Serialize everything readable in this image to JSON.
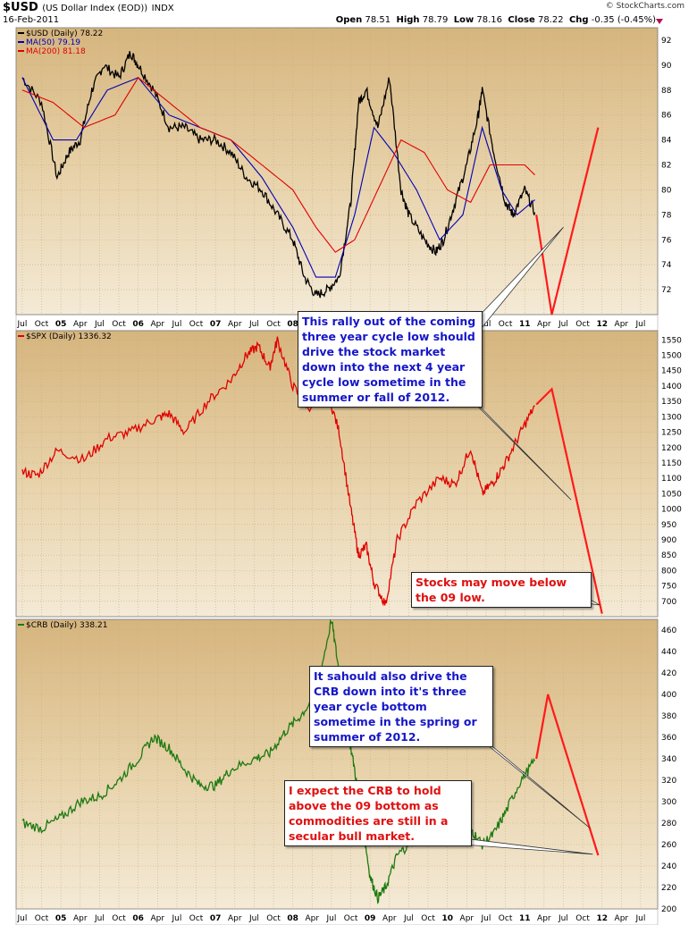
{
  "header": {
    "symbol": "$USD",
    "description": "(US Dollar Index (EOD))",
    "exchange": "INDX",
    "date": "16-Feb-2011",
    "brand": "© StockCharts.com",
    "open_label": "Open",
    "open": "78.51",
    "high_label": "High",
    "high": "78.79",
    "low_label": "Low",
    "low": "78.16",
    "close_label": "Close",
    "close": "78.22",
    "chg_label": "Chg",
    "chg": "-0.35 (-0.45%)"
  },
  "colors": {
    "background": "#dcc08e",
    "usd": "#000000",
    "ma50": "#0000b4",
    "ma200": "#e00000",
    "spx": "#e00000",
    "crb": "#1c7a10",
    "projection": "#ff1a1a"
  },
  "time_axis": {
    "ticks": [
      "Jul",
      "Oct",
      "05",
      "Apr",
      "Jul",
      "Oct",
      "06",
      "Apr",
      "Jul",
      "Oct",
      "07",
      "Apr",
      "Jul",
      "Oct",
      "08",
      "Apr",
      "Jul",
      "Oct",
      "09",
      "Apr",
      "Jul",
      "Oct",
      "10",
      "Apr",
      "Jul",
      "Oct",
      "11",
      "Apr",
      "Jul",
      "Oct",
      "12",
      "Apr",
      "Jul"
    ],
    "year_ticks": [
      "05",
      "06",
      "07",
      "08",
      "09",
      "10",
      "11",
      "12"
    ]
  },
  "chart_data": [
    {
      "type": "line",
      "legend": [
        "$USD (Daily) 78.22",
        "MA(50) 79.19",
        "MA(200) 81.18"
      ],
      "ylim": [
        70,
        93
      ],
      "y_ticks": [
        92,
        90,
        88,
        86,
        84,
        82,
        80,
        78,
        76,
        74,
        72
      ],
      "series": [
        {
          "name": "$USD (Daily)",
          "last": 78.22,
          "x": [
            2004.5,
            2004.75,
            2004.95,
            2005.1,
            2005.25,
            2005.4,
            2005.55,
            2005.75,
            2005.9,
            2006.0,
            2006.2,
            2006.4,
            2006.6,
            2006.8,
            2007.0,
            2007.2,
            2007.4,
            2007.6,
            2007.8,
            2008.0,
            2008.15,
            2008.3,
            2008.45,
            2008.6,
            2008.75,
            2008.85,
            2008.95,
            2009.1,
            2009.25,
            2009.4,
            2009.5,
            2009.7,
            2009.85,
            2009.95,
            2010.1,
            2010.25,
            2010.4,
            2010.45,
            2010.6,
            2010.75,
            2010.85,
            2011.0,
            2011.13
          ],
          "y": [
            89,
            87,
            81,
            83,
            84,
            88,
            90,
            89,
            91,
            90,
            88,
            85,
            85,
            84,
            84,
            83,
            81,
            80,
            78,
            76,
            73,
            71.5,
            72,
            73,
            79,
            87,
            88,
            85,
            89,
            80,
            78,
            76,
            75,
            76,
            79,
            82,
            86,
            88,
            83,
            79,
            78,
            80,
            78.2
          ]
        },
        {
          "name": "MA(50)",
          "last": 79.19,
          "x": [
            2004.5,
            2004.9,
            2005.2,
            2005.6,
            2006.0,
            2006.4,
            2006.8,
            2007.2,
            2007.6,
            2008.0,
            2008.3,
            2008.55,
            2008.8,
            2009.05,
            2009.3,
            2009.6,
            2009.9,
            2010.2,
            2010.45,
            2010.7,
            2010.9,
            2011.13
          ],
          "y": [
            89,
            84,
            84,
            88,
            89,
            86,
            85,
            84,
            81,
            77,
            73,
            73,
            78,
            85,
            83,
            80,
            76,
            78,
            85,
            80,
            78,
            79.2
          ]
        },
        {
          "name": "MA(200)",
          "last": 81.18,
          "x": [
            2004.5,
            2004.9,
            2005.3,
            2005.7,
            2006.0,
            2006.4,
            2006.8,
            2007.2,
            2007.6,
            2008.0,
            2008.3,
            2008.55,
            2008.8,
            2009.1,
            2009.4,
            2009.7,
            2010.0,
            2010.3,
            2010.55,
            2010.8,
            2011.0,
            2011.13
          ],
          "y": [
            88,
            87,
            85,
            86,
            89,
            87,
            85,
            84,
            82,
            80,
            77,
            75,
            76,
            80,
            84,
            83,
            80,
            79,
            82,
            82,
            82,
            81.2
          ]
        }
      ],
      "projection": {
        "x": [
          2011.15,
          2011.35,
          2011.95
        ],
        "y": [
          78,
          70,
          85
        ]
      },
      "pointer": {
        "x": 2011.5,
        "y": 77
      }
    },
    {
      "type": "line",
      "legend": [
        "$SPX (Daily) 1336.32"
      ],
      "ylim": [
        650,
        1580
      ],
      "y_ticks": [
        1550,
        1500,
        1450,
        1400,
        1350,
        1300,
        1250,
        1200,
        1150,
        1100,
        1050,
        1000,
        950,
        900,
        850,
        800,
        750,
        700
      ],
      "series": [
        {
          "name": "$SPX (Daily)",
          "last": 1336.32,
          "x": [
            2004.5,
            2004.7,
            2004.95,
            2005.3,
            2005.6,
            2005.9,
            2006.2,
            2006.4,
            2006.6,
            2006.9,
            2007.2,
            2007.4,
            2007.55,
            2007.7,
            2007.8,
            2008.0,
            2008.2,
            2008.45,
            2008.6,
            2008.75,
            2008.85,
            2008.95,
            2009.05,
            2009.2,
            2009.35,
            2009.6,
            2009.9,
            2010.1,
            2010.3,
            2010.45,
            2010.6,
            2010.75,
            2010.95,
            2011.13
          ],
          "y": [
            1120,
            1110,
            1190,
            1160,
            1230,
            1250,
            1290,
            1310,
            1250,
            1350,
            1420,
            1500,
            1530,
            1460,
            1550,
            1400,
            1330,
            1380,
            1250,
            1000,
            850,
            880,
            760,
            690,
            900,
            1020,
            1100,
            1080,
            1200,
            1050,
            1090,
            1150,
            1250,
            1336
          ]
        }
      ],
      "projection": {
        "x": [
          2011.15,
          2011.35,
          2012.0
        ],
        "y": [
          1340,
          1390,
          660
        ]
      },
      "pointer": {
        "x": 2011.6,
        "y": 1030
      }
    },
    {
      "type": "line",
      "legend": [
        "$CRB (Daily) 338.21"
      ],
      "ylim": [
        200,
        470
      ],
      "y_ticks": [
        460,
        440,
        420,
        400,
        380,
        360,
        340,
        320,
        300,
        280,
        260,
        240,
        220,
        200
      ],
      "series": [
        {
          "name": "$CRB (Daily)",
          "last": 338.21,
          "x": [
            2004.5,
            2004.75,
            2005.0,
            2005.25,
            2005.5,
            2005.75,
            2006.0,
            2006.2,
            2006.4,
            2006.6,
            2006.8,
            2007.0,
            2007.2,
            2007.5,
            2007.7,
            2007.9,
            2008.1,
            2008.3,
            2008.5,
            2008.6,
            2008.7,
            2008.8,
            2008.9,
            2009.0,
            2009.1,
            2009.2,
            2009.35,
            2009.5,
            2009.7,
            2009.9,
            2010.1,
            2010.3,
            2010.45,
            2010.6,
            2010.75,
            2010.95,
            2011.13
          ],
          "y": [
            280,
            275,
            285,
            300,
            305,
            320,
            340,
            360,
            350,
            330,
            315,
            315,
            330,
            340,
            345,
            365,
            380,
            400,
            470,
            420,
            370,
            330,
            280,
            230,
            210,
            220,
            250,
            260,
            270,
            280,
            285,
            275,
            260,
            270,
            290,
            320,
            338
          ]
        }
      ],
      "projection": {
        "x": [
          2011.15,
          2011.3,
          2011.95
        ],
        "y": [
          340,
          400,
          250
        ]
      },
      "pointer": {
        "x": 2011.85,
        "y": 275
      },
      "pointer2": {
        "x": 2011.88,
        "y": 251
      }
    }
  ],
  "annotations": {
    "usd": "This rally out of the coming three year cycle low should drive the stock market down into the next 4 year cycle low sometime in the summer or fall of 2012.",
    "spx": "Stocks may move below the 09 low.",
    "crb_drive": "It sahould also drive the CRB down into it's three year cycle bottom sometime in the spring or summer of 2012.",
    "crb_hold": "I expect the CRB to hold above the 09 bottom as commodities are still in a secular bull market."
  }
}
